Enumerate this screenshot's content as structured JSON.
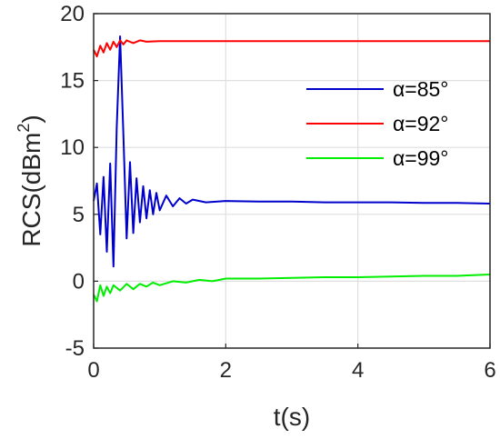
{
  "chart_data": {
    "type": "line",
    "xlabel": "t(s)",
    "ylabel_main": "RCS(dBm",
    "ylabel_sup": "2",
    "ylabel_close": ")",
    "xlim": [
      0,
      6
    ],
    "ylim": [
      -5,
      20
    ],
    "xticks": [
      0,
      2,
      4,
      6
    ],
    "xtick_labels": [
      "0",
      "2",
      "4",
      "6"
    ],
    "yticks": [
      -5,
      0,
      5,
      10,
      15,
      20
    ],
    "ytick_labels": [
      "-5",
      "0",
      "5",
      "10",
      "15",
      "20"
    ],
    "grid": true,
    "legend_position": "center-right",
    "series": [
      {
        "name": "α=85°",
        "color": "#0000cc",
        "x": [
          0,
          0.05,
          0.1,
          0.15,
          0.2,
          0.25,
          0.3,
          0.35,
          0.4,
          0.45,
          0.5,
          0.55,
          0.6,
          0.65,
          0.7,
          0.75,
          0.8,
          0.85,
          0.9,
          0.95,
          1.0,
          1.1,
          1.2,
          1.3,
          1.4,
          1.5,
          1.7,
          2.0,
          2.5,
          3.0,
          3.5,
          4.0,
          4.5,
          5.0,
          5.5,
          6.0
        ],
        "y": [
          6.0,
          7.3,
          3.5,
          7.8,
          2.2,
          8.8,
          1.1,
          11.5,
          18.3,
          11.0,
          3.2,
          8.9,
          3.6,
          7.7,
          4.4,
          7.1,
          4.7,
          6.8,
          5.0,
          6.6,
          5.3,
          6.4,
          5.6,
          6.2,
          5.8,
          6.1,
          5.9,
          6.0,
          5.95,
          5.95,
          5.9,
          5.9,
          5.9,
          5.85,
          5.85,
          5.8
        ]
      },
      {
        "name": "α=92°",
        "color": "#ff0000",
        "x": [
          0,
          0.05,
          0.1,
          0.15,
          0.2,
          0.25,
          0.3,
          0.35,
          0.4,
          0.45,
          0.5,
          0.6,
          0.7,
          0.8,
          1.0,
          1.5,
          2.0,
          3.0,
          4.0,
          5.0,
          6.0
        ],
        "y": [
          17.3,
          16.8,
          17.6,
          17.1,
          17.8,
          17.3,
          17.9,
          17.5,
          18.0,
          17.7,
          18.0,
          17.8,
          18.0,
          17.9,
          17.95,
          17.95,
          17.95,
          17.95,
          17.95,
          17.95,
          17.95
        ]
      },
      {
        "name": "α=99°",
        "color": "#00ee00",
        "x": [
          0,
          0.05,
          0.1,
          0.15,
          0.2,
          0.25,
          0.3,
          0.4,
          0.5,
          0.6,
          0.7,
          0.8,
          0.9,
          1.0,
          1.2,
          1.4,
          1.6,
          1.8,
          2.0,
          2.5,
          3.0,
          3.5,
          4.0,
          4.5,
          5.0,
          5.5,
          6.0
        ],
        "y": [
          -1.0,
          -1.5,
          -0.3,
          -1.1,
          -0.4,
          -0.9,
          -0.3,
          -0.7,
          -0.2,
          -0.6,
          -0.2,
          -0.4,
          -0.1,
          -0.3,
          0.0,
          -0.1,
          0.1,
          0.0,
          0.2,
          0.2,
          0.25,
          0.3,
          0.3,
          0.35,
          0.4,
          0.4,
          0.5
        ]
      }
    ]
  }
}
